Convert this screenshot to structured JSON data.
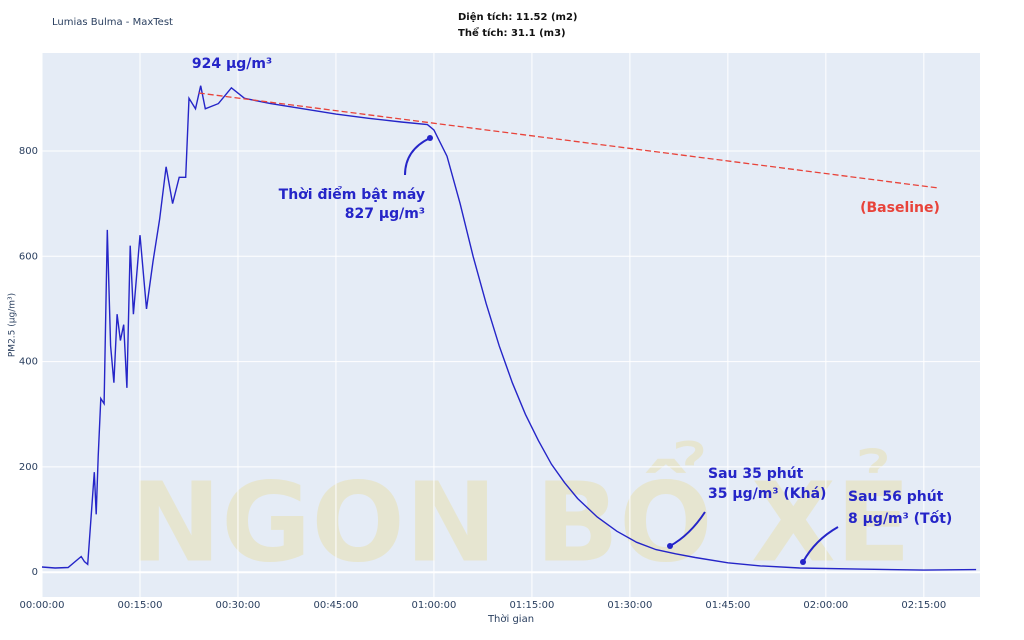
{
  "chart_data": {
    "type": "line",
    "title": "Lumias Bulma - MaxTest",
    "subtitle": [
      "Diện tích: 11.52 (m2)",
      "Thể tích: 31.1 (m3)"
    ],
    "xlabel": "Thời gian",
    "ylabel": "PM2.5 (μg/m³)",
    "watermark": "NGON BỔ XẺ",
    "xlim": [
      0,
      143.6
    ],
    "ylim": [
      -47,
      986
    ],
    "xticks": [
      {
        "value": 0,
        "label": "00:00:00"
      },
      {
        "value": 15,
        "label": "00:15:00"
      },
      {
        "value": 30,
        "label": "00:30:00"
      },
      {
        "value": 45,
        "label": "00:45:00"
      },
      {
        "value": 60,
        "label": "01:00:00"
      },
      {
        "value": 75,
        "label": "01:15:00"
      },
      {
        "value": 90,
        "label": "01:30:00"
      },
      {
        "value": 105,
        "label": "01:45:00"
      },
      {
        "value": 120,
        "label": "02:00:00"
      },
      {
        "value": 135,
        "label": "02:15:00"
      }
    ],
    "yticks": [
      0,
      200,
      400,
      600,
      800
    ],
    "grid": true,
    "series": [
      {
        "color": "#2525c8",
        "x": [
          0,
          2,
          4,
          6,
          6.5,
          7,
          8,
          8.3,
          8.6,
          9,
          9.5,
          10,
          10.5,
          11,
          11.5,
          12,
          12.5,
          13,
          13.5,
          14,
          15,
          16,
          17,
          18,
          19,
          20,
          21,
          22,
          22.5,
          23.5,
          24.3,
          25,
          27,
          29,
          31,
          35,
          40,
          45,
          50,
          55,
          59,
          60,
          62,
          64,
          66,
          68,
          70,
          72,
          74,
          76,
          78,
          80,
          82,
          85,
          88,
          91,
          94,
          97,
          100,
          105,
          110,
          116,
          125,
          135,
          143
        ],
        "values": [
          10,
          8,
          9,
          30,
          20,
          15,
          190,
          110,
          220,
          330,
          320,
          650,
          430,
          360,
          490,
          440,
          470,
          350,
          620,
          490,
          640,
          500,
          590,
          670,
          770,
          700,
          750,
          750,
          900,
          880,
          924,
          880,
          890,
          920,
          900,
          890,
          880,
          870,
          862,
          855,
          850,
          840,
          790,
          700,
          600,
          510,
          430,
          360,
          300,
          250,
          205,
          170,
          140,
          105,
          78,
          57,
          43,
          35,
          28,
          18,
          12,
          8,
          6,
          4,
          5
        ]
      }
    ],
    "baseline": {
      "label": "(Baseline)",
      "color": "#e8433a",
      "dash": true,
      "x": [
        24,
        137
      ],
      "values": [
        910,
        730
      ]
    },
    "annotations": [
      "924 μg/m³",
      "Thời điểm bật máy",
      "827 μg/m³",
      "Sau 35 phút",
      "35 μg/m³ (Khá)",
      "Sau 56 phút",
      "8 μg/m³ (Tốt)"
    ]
  }
}
